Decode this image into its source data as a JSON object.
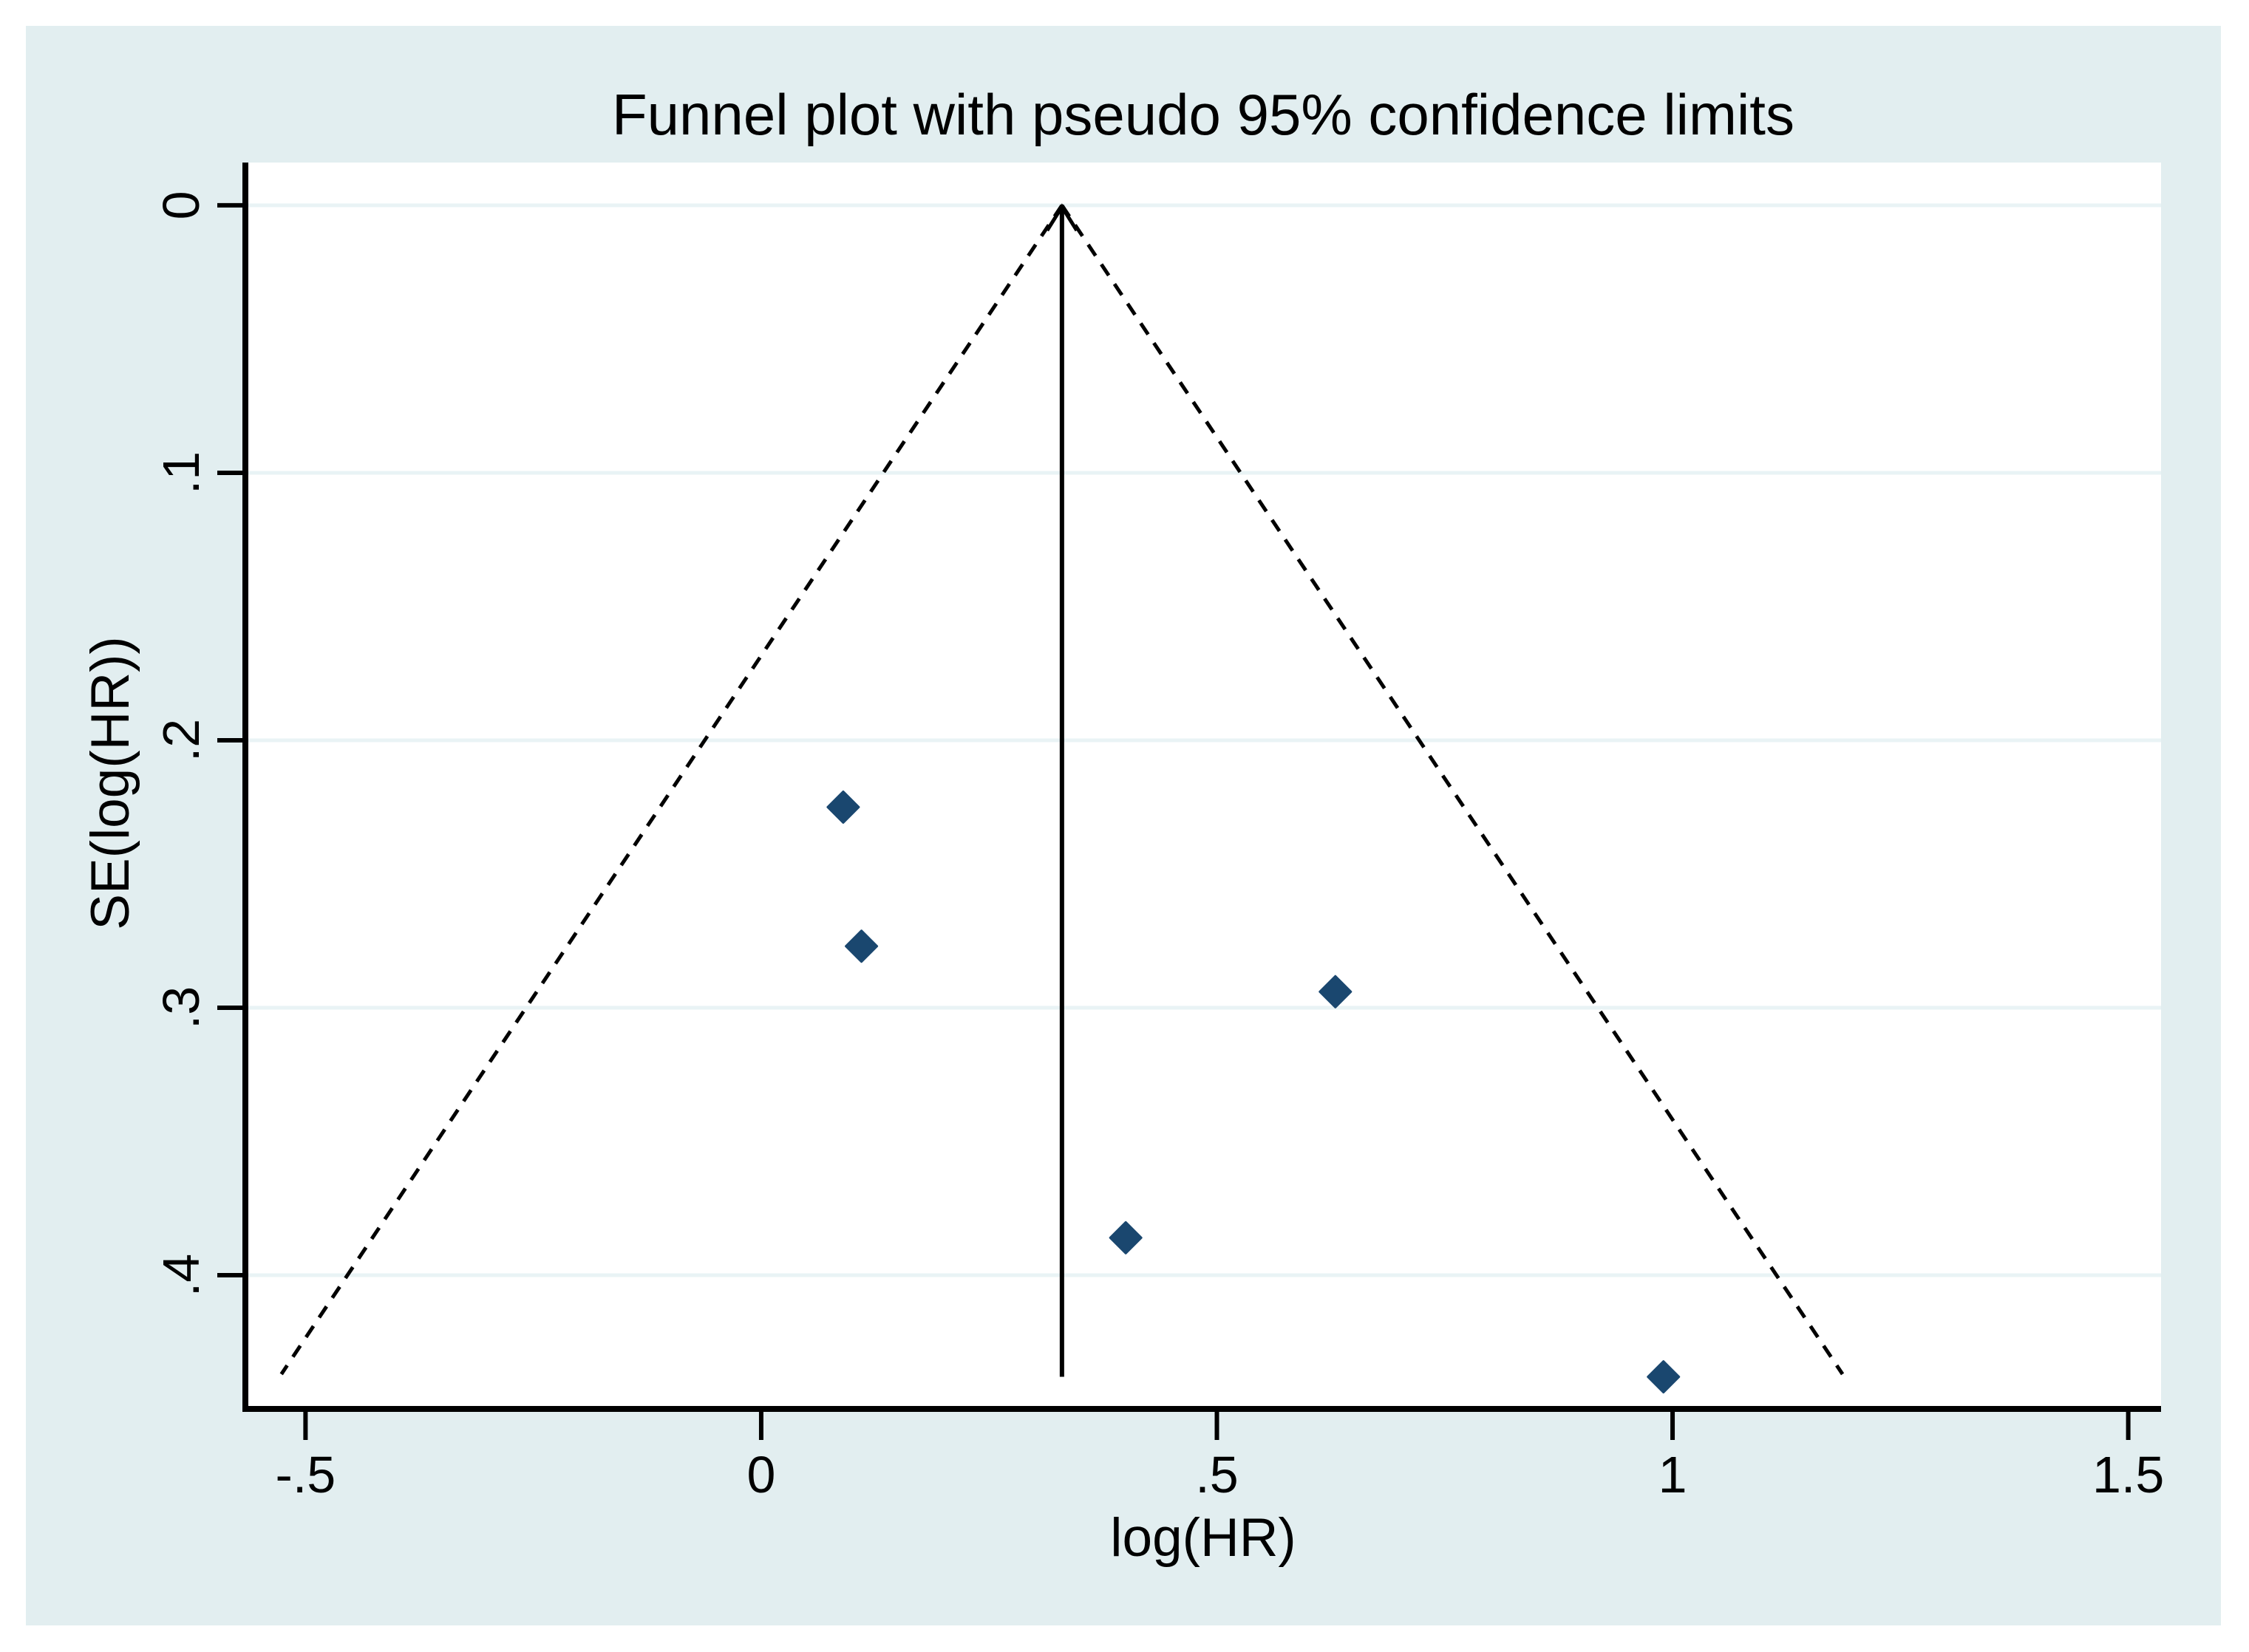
{
  "chart_data": {
    "type": "scatter",
    "subtype": "funnel-plot",
    "title": "Funnel plot with pseudo 95% confidence limits",
    "xlabel": "log(HR)",
    "ylabel": "SE(log(HR))",
    "x_ticks": [
      {
        "value": -0.5,
        "label": "-.5"
      },
      {
        "value": 0,
        "label": "0"
      },
      {
        "value": 0.5,
        "label": ".5"
      },
      {
        "value": 1,
        "label": "1"
      },
      {
        "value": 1.5,
        "label": "1.5"
      }
    ],
    "y_ticks": [
      {
        "value": 0.0,
        "label": "0"
      },
      {
        "value": 0.1,
        "label": ".1"
      },
      {
        "value": 0.2,
        "label": ".2"
      },
      {
        "value": 0.3,
        "label": ".3"
      },
      {
        "value": 0.4,
        "label": ".4"
      }
    ],
    "x_range": [
      -0.566,
      1.536
    ],
    "y_range": [
      -0.016,
      0.45
    ],
    "y_axis_inverted": true,
    "grid": "horizontal",
    "legend": "none",
    "points": [
      {
        "log_hr": 0.09,
        "se": 0.225
      },
      {
        "log_hr": 0.11,
        "se": 0.277
      },
      {
        "log_hr": 0.63,
        "se": 0.294
      },
      {
        "log_hr": 0.4,
        "se": 0.386
      },
      {
        "log_hr": 0.99,
        "se": 0.438
      }
    ],
    "pooled_log_hr": 0.33,
    "ci_multiplier": 1.96,
    "funnel_max_se": 0.437,
    "pooled_line_bottom_se": 0.438,
    "colors": {
      "canvas_background": "#e2eef0",
      "plot_background": "#ffffff",
      "gridline": "#e9f3f5",
      "marker": "#1a476f",
      "line": "#000000",
      "text": "#000000"
    }
  }
}
